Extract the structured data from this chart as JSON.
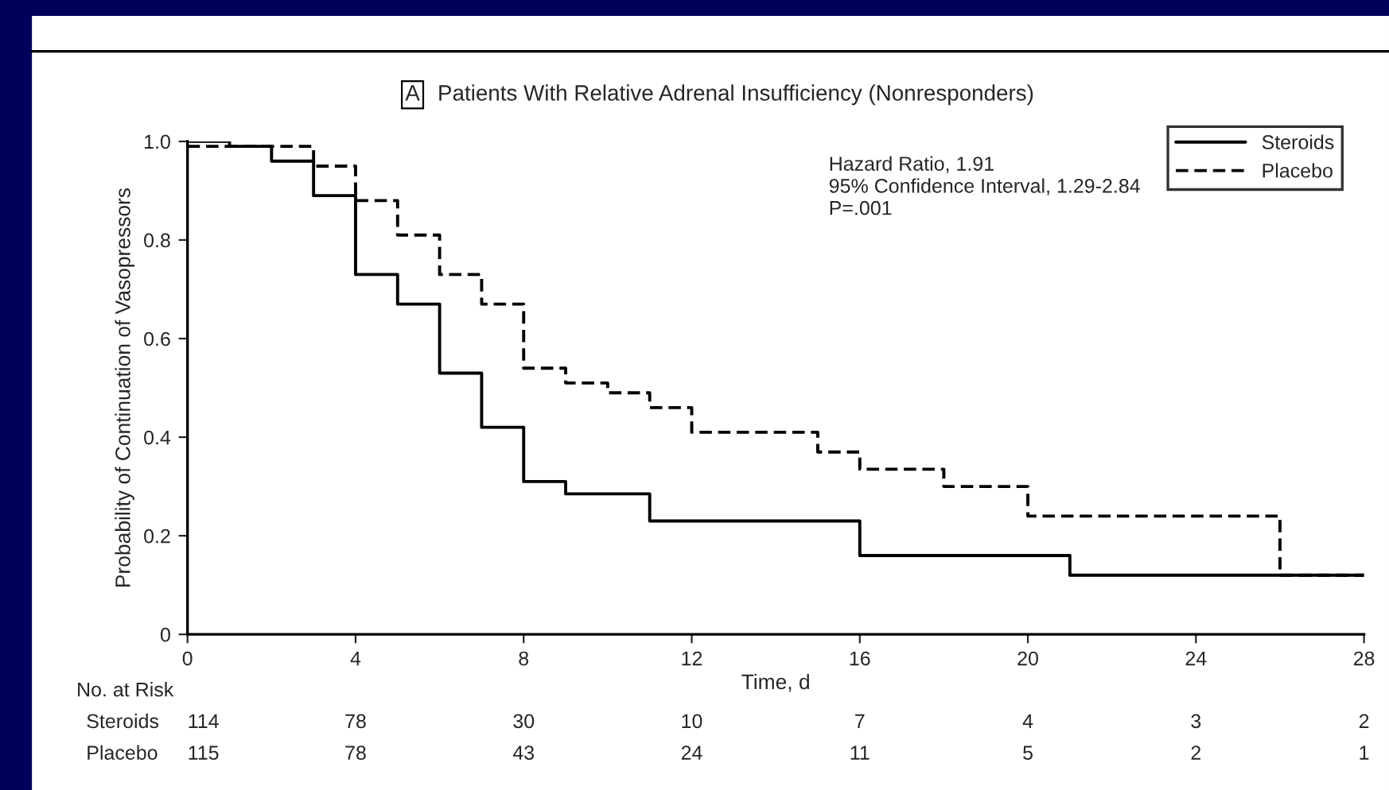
{
  "chart_data": {
    "type": "step",
    "title": "Patients With Relative Adrenal Insufficiency (Nonresponders)",
    "subtitle": "A",
    "xlabel": "Time, d",
    "ylabel": "Probability of Continuation of Vasopressors",
    "series": [
      {
        "name": "Steroids",
        "color": "#000000",
        "line_style": "solid",
        "x": [
          0,
          1,
          2,
          3,
          4,
          5,
          6,
          7,
          8,
          9,
          11,
          16,
          21,
          28
        ],
        "values": [
          1.0,
          0.99,
          0.96,
          0.89,
          0.73,
          0.67,
          0.53,
          0.42,
          0.31,
          0.285,
          0.23,
          0.16,
          0.12,
          0.12
        ]
      },
      {
        "name": "Placebo",
        "color": "#000000",
        "line_style": "dashed",
        "x": [
          0,
          3,
          4,
          5,
          6,
          7,
          8,
          9,
          10,
          11,
          12,
          15,
          16,
          18,
          20,
          26,
          28
        ],
        "values": [
          0.99,
          0.95,
          0.88,
          0.81,
          0.73,
          0.67,
          0.54,
          0.51,
          0.49,
          0.46,
          0.41,
          0.37,
          0.335,
          0.3,
          0.24,
          0.12,
          0.12
        ]
      }
    ],
    "xlim": [
      0,
      28
    ],
    "xticks": [
      0,
      4,
      8,
      12,
      16,
      20,
      24,
      28
    ],
    "ylim": [
      0,
      1.0
    ],
    "yticks": [
      0,
      0.2,
      0.4,
      0.6,
      0.8,
      {
        "value": 1.0,
        "label": "1.0"
      }
    ],
    "grid": false,
    "legend": "top right",
    "annotations": [
      "Hazard Ratio, 1.91\n95% Confidence Interval, 1.29-2.84\nP=.001",
      "No. at Risk",
      "Steroids",
      "114",
      "78",
      "30",
      "10",
      "7",
      "4",
      "3",
      "2",
      "Placebo",
      "115",
      "78",
      "43",
      "24",
      "11",
      "5",
      "2",
      "1"
    ]
  }
}
